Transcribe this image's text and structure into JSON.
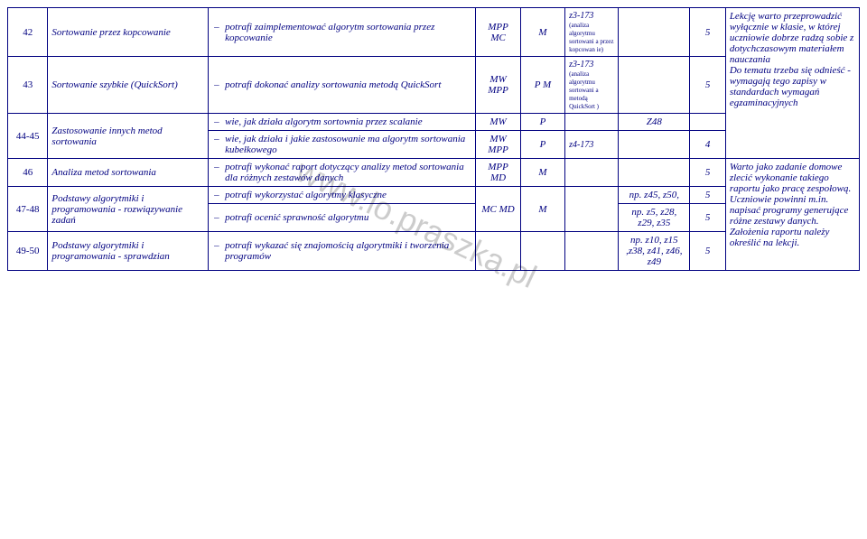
{
  "watermark": "www.lo.praszka.pl",
  "rows": [
    {
      "num": "42",
      "topic": "Sortowanie przez kopcowanie",
      "skill": "potrafi zaimplementować algorytm sortowania przez kopcowanie",
      "c4": "MPP MC",
      "c5": "M",
      "c6_main": "z3-173",
      "c6_note": "(analiza algorytmu sortowani a przez kopcowan ie)",
      "c7": "",
      "c8": "5",
      "c9": " Lekcję warto przeprowadzić wyłącznie w klasie, w której uczniowie dobrze radzą sobie z dotychczasowym materiałem nauczania"
    },
    {
      "num": "43",
      "topic": "Sortowanie szybkie (QuickSort)",
      "skill": "potrafi dokonać analizy sortowania metodą QuickSort",
      "c4": "MW MPP",
      "c5": "P M",
      "c6_main": "z3-173",
      "c6_note": "(analiza algorytmu sortowani a metodą QuickSort )",
      "c7": "",
      "c8": "5",
      "c9": " Do tematu trzeba się odnieść - wymagają tego zapisy w standardach wymagań egzaminacyjnych"
    },
    {
      "num": "44-45",
      "topic": "Zastosowanie innych metod sortowania",
      "skill_a": "wie, jak działa algorytm sortownia przez scalanie",
      "c4a": "MW",
      "c5a": "P",
      "c6a": "",
      "c7a": "Z48",
      "c8a": "",
      "skill_b": "wie, jak działa i jakie zastosowanie ma algorytm sortowania kubełkowego",
      "c4b": "MW MPP",
      "c5b": "P",
      "c6b": "z4-173",
      "c7b": "",
      "c8b": "4"
    },
    {
      "num": "46",
      "topic": "Analiza metod sortowania",
      "skill": "potrafi wykonać raport dotyczący analizy metod sortowania dla różnych zestawów danych",
      "c4": "MPP MD",
      "c5": "M",
      "c6": "",
      "c7": "",
      "c8": "5",
      "c9": " Warto jako zadanie domowe zlecić wykonanie takiego raportu jako pracę zespołową. Uczniowie powinni m.in. napisać programy generujące różne zestawy danych. Założenia raportu należy określić na lekcji."
    },
    {
      "num": "47-48",
      "topic": "Podstawy algorytmiki i programowania - rozwiązywanie zadań",
      "skill_a": "potrafi wykorzystać algorytmy klasyczne",
      "c7a": "np. z45, z50,",
      "c8a": "5",
      "skill_b": "potrafi ocenić sprawność algorytmu",
      "c7b": "np. z5, z28, z29, z35",
      "c8b": "5",
      "c4": "MC MD",
      "c5": "M"
    },
    {
      "num": "49-50",
      "topic": "Podstawy algorytmiki i programowania - sprawdzian",
      "skill": "potrafi wykazać się znajomością algorytmiki i tworzenia programów",
      "c4": "",
      "c5": "",
      "c6": "",
      "c7": "np. z10, z15 ,z38, z41, z46, z49",
      "c8": "5"
    }
  ]
}
